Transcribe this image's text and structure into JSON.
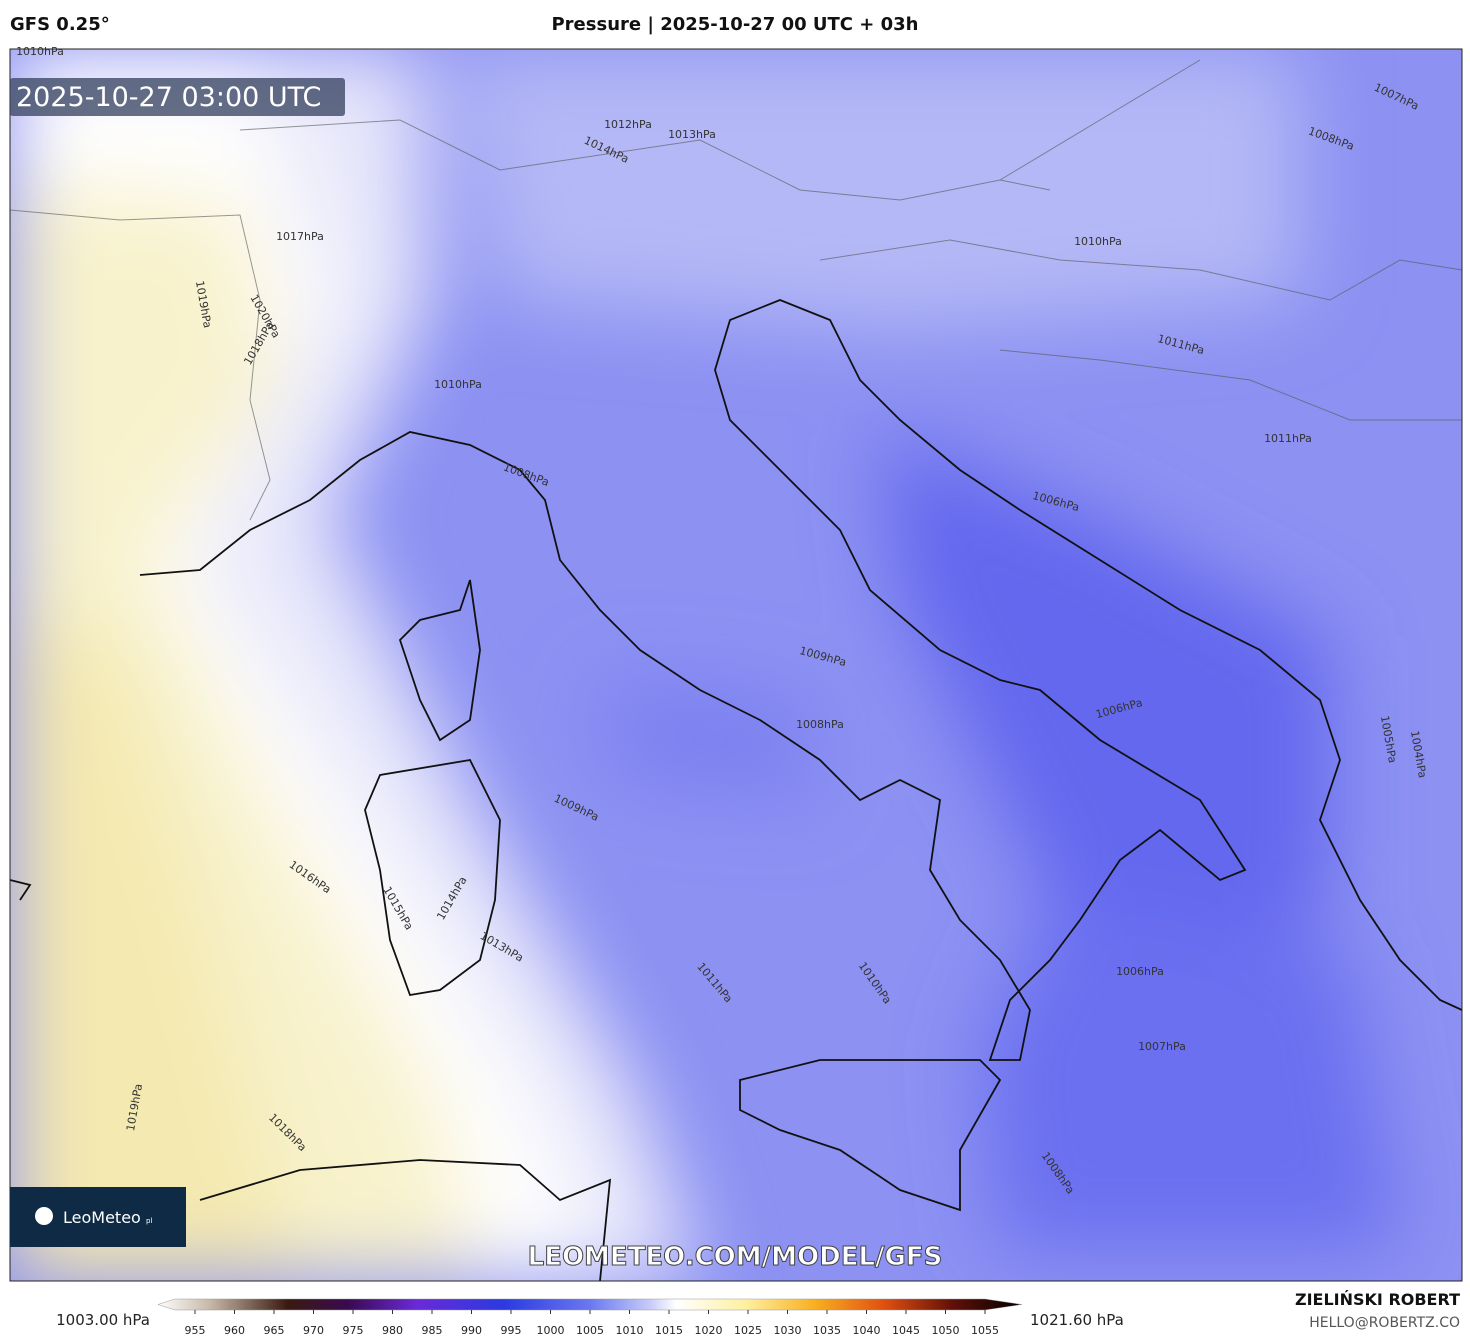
{
  "header": {
    "model": "GFS 0.25°",
    "title": "Pressure | 2025-10-27 00 UTC + 03h"
  },
  "map": {
    "timestamp": "2025-10-27 03:00 UTC",
    "watermark": "LEOMETEO.COM/MODEL/GFS",
    "logo": {
      "name": "LeoMeteo",
      "suffix": "pl"
    },
    "isobar_labels": [
      "1010hPa",
      "1012hPa",
      "1013hPa",
      "1014hPa",
      "1017hPa",
      "1019hPa",
      "1020hPa",
      "1018hPa",
      "1010hPa",
      "1008hPa",
      "1009hPa",
      "1016hPa",
      "1015hPa",
      "1014hPa",
      "1013hPa",
      "1011hPa",
      "1010hPa",
      "1009hPa",
      "1008hPa",
      "1006hPa",
      "1006hPa",
      "1006hPa",
      "1007hPa",
      "1008hPa",
      "1019hPa",
      "1018hPa",
      "1007hPa",
      "1008hPa",
      "1010hPa",
      "1011hPa",
      "1011hPa",
      "1005hPa",
      "1004hPa"
    ]
  },
  "colorbar": {
    "min_label": "1003.00 hPa",
    "max_label": "1021.60 hPa",
    "ticks": [
      955,
      960,
      965,
      970,
      975,
      980,
      985,
      990,
      995,
      1000,
      1005,
      1010,
      1015,
      1020,
      1025,
      1030,
      1035,
      1040,
      1045,
      1050,
      1055
    ]
  },
  "footer": {
    "author": "ZIELIŃSKI ROBERT",
    "email": "HELLO@ROBERTZ.CO"
  }
}
